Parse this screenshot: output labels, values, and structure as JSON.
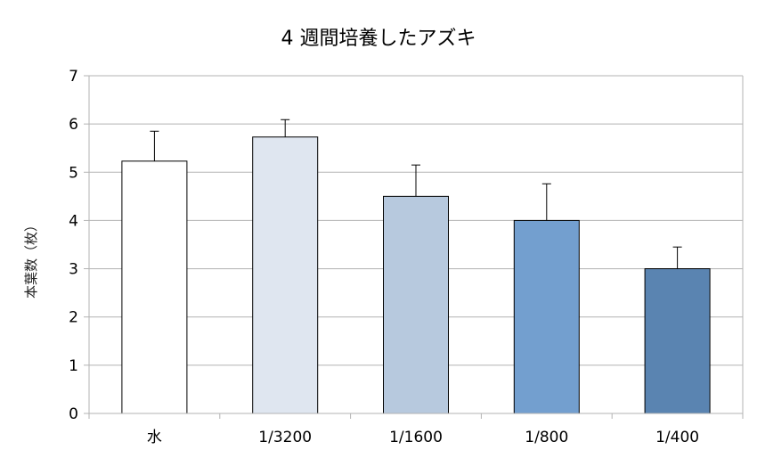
{
  "chart_data": {
    "type": "bar",
    "title": "4 週間培養したアズキ",
    "xlabel": "",
    "ylabel": "本葉数（枚）",
    "categories": [
      "水",
      "1/3200",
      "1/1600",
      "1/800",
      "1/400"
    ],
    "values": [
      5.23,
      5.73,
      4.5,
      4.0,
      3.0
    ],
    "error_upper": [
      0.62,
      0.36,
      0.65,
      0.76,
      0.45
    ],
    "ylim": [
      0,
      7
    ],
    "yticks": [
      0,
      1,
      2,
      3,
      4,
      5,
      6,
      7
    ],
    "grid": true,
    "legend": "none",
    "bar_colors": [
      "#ffffff",
      "#dfe6f0",
      "#b7c9de",
      "#739fcf",
      "#5a84b1"
    ]
  }
}
